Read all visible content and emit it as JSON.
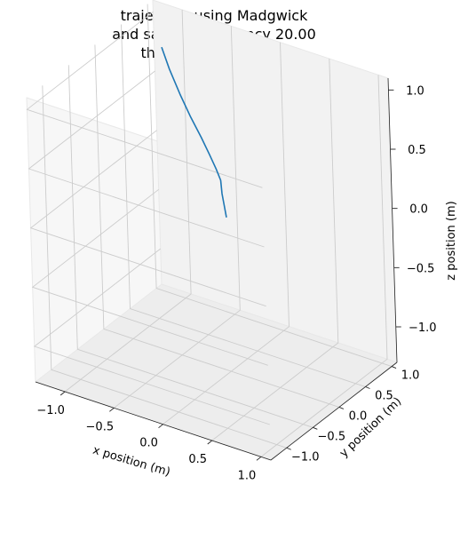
{
  "chart_data": {
    "type": "line",
    "projection": "3d",
    "title": [
      "trajectory using Madgwick",
      "and sample frequency 20.00",
      "threshold used: 0.00"
    ],
    "xlabel": "x position (m)",
    "ylabel": "y position (m)",
    "zlabel": "z position (m)",
    "xlim": [
      -1.3,
      1.1
    ],
    "ylim": [
      -1.3,
      1.1
    ],
    "zlim": [
      -1.3,
      1.1
    ],
    "x_ticks": [
      "−1.0",
      "−0.5",
      "0.0",
      "0.5",
      "1.0"
    ],
    "y_ticks": [
      "−1.0",
      "−0.5",
      "0.0",
      "0.5",
      "1.0"
    ],
    "z_ticks": [
      "−1.0",
      "−0.5",
      "0.0",
      "0.5",
      "1.0"
    ],
    "x_tick_values": [
      -1.0,
      -0.5,
      0.0,
      0.5,
      1.0
    ],
    "y_tick_values": [
      -1.0,
      -0.5,
      0.0,
      0.5,
      1.0
    ],
    "z_tick_values": [
      -1.0,
      -0.5,
      0.0,
      0.5,
      1.0
    ],
    "grid": true,
    "pane_color": "#f2f2f2",
    "series": [
      {
        "color": "#1f77b4",
        "points": [
          {
            "x": 0.0,
            "y": 0.0,
            "z": 0.0
          },
          {
            "x": -0.05,
            "y": 0.02,
            "z": 0.18
          },
          {
            "x": -0.07,
            "y": 0.04,
            "z": 0.28
          },
          {
            "x": -0.12,
            "y": 0.05,
            "z": 0.36
          },
          {
            "x": -0.2,
            "y": 0.08,
            "z": 0.45
          },
          {
            "x": -0.3,
            "y": 0.12,
            "z": 0.55
          },
          {
            "x": -0.42,
            "y": 0.15,
            "z": 0.68
          },
          {
            "x": -0.55,
            "y": 0.2,
            "z": 0.82
          },
          {
            "x": -0.68,
            "y": 0.25,
            "z": 0.98
          },
          {
            "x": -0.78,
            "y": 0.3,
            "z": 1.12
          }
        ]
      }
    ]
  }
}
